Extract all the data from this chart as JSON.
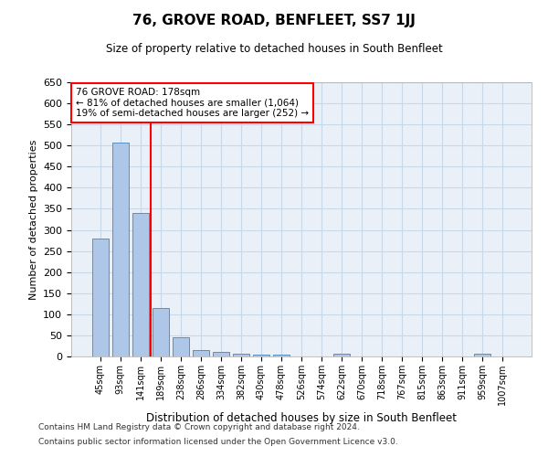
{
  "title": "76, GROVE ROAD, BENFLEET, SS7 1JJ",
  "subtitle": "Size of property relative to detached houses in South Benfleet",
  "xlabel": "Distribution of detached houses by size in South Benfleet",
  "ylabel": "Number of detached properties",
  "footnote1": "Contains HM Land Registry data © Crown copyright and database right 2024.",
  "footnote2": "Contains public sector information licensed under the Open Government Licence v3.0.",
  "categories": [
    "45sqm",
    "93sqm",
    "141sqm",
    "189sqm",
    "238sqm",
    "286sqm",
    "334sqm",
    "382sqm",
    "430sqm",
    "478sqm",
    "526sqm",
    "574sqm",
    "622sqm",
    "670sqm",
    "718sqm",
    "767sqm",
    "815sqm",
    "863sqm",
    "911sqm",
    "959sqm",
    "1007sqm"
  ],
  "values": [
    280,
    507,
    340,
    115,
    45,
    15,
    10,
    7,
    5,
    5,
    0,
    0,
    6,
    0,
    0,
    0,
    0,
    0,
    0,
    6,
    0
  ],
  "bar_color": "#aec6e8",
  "bar_edge_color": "#5a8fc2",
  "grid_color": "#c8d8e8",
  "background_color": "#eaf0f8",
  "red_line_x": 2.5,
  "annotation_text": "76 GROVE ROAD: 178sqm\n← 81% of detached houses are smaller (1,064)\n19% of semi-detached houses are larger (252) →",
  "annotation_box_color": "white",
  "annotation_box_edge": "red",
  "ylim": [
    0,
    650
  ],
  "yticks": [
    0,
    50,
    100,
    150,
    200,
    250,
    300,
    350,
    400,
    450,
    500,
    550,
    600,
    650
  ]
}
